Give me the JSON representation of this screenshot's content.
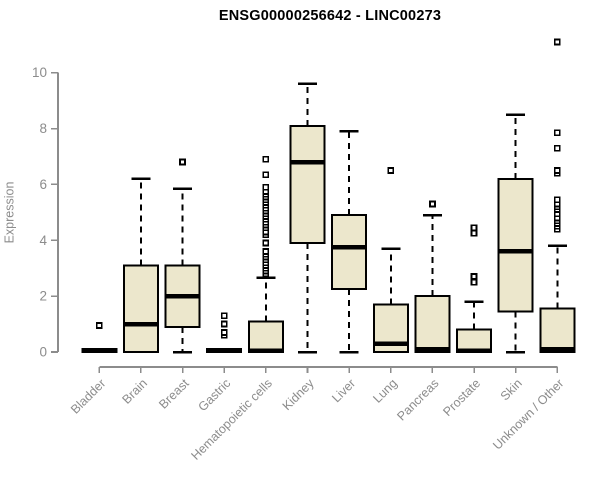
{
  "chart_data": {
    "type": "boxplot",
    "title": "ENSG00000256642 - LINC00273",
    "xlabel": "",
    "ylabel": "Expression",
    "ylim": [
      0,
      10
    ],
    "yticks": [
      0,
      2,
      4,
      6,
      8,
      10
    ],
    "grid": false,
    "legend": false,
    "categories": [
      "Bladder",
      "Brain",
      "Breast",
      "Gastric",
      "Hematopoietic cells",
      "Kidney",
      "Liver",
      "Lung",
      "Pancreas",
      "Prostate",
      "Skin",
      "Unknown / Other"
    ],
    "boxes": [
      {
        "category": "Bladder",
        "whisker_low": 0,
        "q1": 0,
        "median": 0.05,
        "q3": 0.1,
        "whisker_high": 0.1,
        "outliers": [
          0.95
        ]
      },
      {
        "category": "Brain",
        "whisker_low": 0,
        "q1": 0,
        "median": 1.0,
        "q3": 3.1,
        "whisker_high": 6.2,
        "outliers": []
      },
      {
        "category": "Breast",
        "whisker_low": 0,
        "q1": 0.9,
        "median": 2.0,
        "q3": 3.1,
        "whisker_high": 5.85,
        "outliers": [
          6.8
        ]
      },
      {
        "category": "Gastric",
        "whisker_low": 0,
        "q1": 0,
        "median": 0.05,
        "q3": 0.1,
        "whisker_high": 0.1,
        "outliers": [
          0.6,
          0.7,
          1.0,
          1.3
        ]
      },
      {
        "category": "Hematopoietic cells",
        "whisker_low": 0,
        "q1": 0,
        "median": 0.05,
        "q3": 1.1,
        "whisker_high": 2.65,
        "outliers": [
          2.8,
          2.9,
          3.0,
          3.1,
          3.2,
          3.3,
          3.4,
          3.5,
          3.6,
          3.9,
          4.2,
          4.3,
          4.45,
          4.55,
          4.65,
          4.75,
          4.85,
          4.95,
          5.05,
          5.15,
          5.25,
          5.35,
          5.45,
          5.55,
          5.65,
          5.75,
          5.9,
          6.35,
          6.9
        ]
      },
      {
        "category": "Kidney",
        "whisker_low": 0,
        "q1": 3.9,
        "median": 6.8,
        "q3": 8.1,
        "whisker_high": 9.6,
        "outliers": []
      },
      {
        "category": "Liver",
        "whisker_low": 0,
        "q1": 2.25,
        "median": 3.75,
        "q3": 4.9,
        "whisker_high": 7.9,
        "outliers": []
      },
      {
        "category": "Lung",
        "whisker_low": 0,
        "q1": 0,
        "median": 0.3,
        "q3": 1.7,
        "whisker_high": 3.7,
        "outliers": [
          6.5
        ]
      },
      {
        "category": "Pancreas",
        "whisker_low": 0,
        "q1": 0,
        "median": 0.1,
        "q3": 2.0,
        "whisker_high": 4.9,
        "outliers": [
          5.3
        ]
      },
      {
        "category": "Prostate",
        "whisker_low": 0,
        "q1": 0,
        "median": 0.05,
        "q3": 0.8,
        "whisker_high": 1.8,
        "outliers": [
          2.5,
          2.7,
          4.25,
          4.45
        ]
      },
      {
        "category": "Skin",
        "whisker_low": 0,
        "q1": 1.45,
        "median": 3.6,
        "q3": 6.2,
        "whisker_high": 8.5,
        "outliers": []
      },
      {
        "category": "Unknown / Other",
        "whisker_low": 0,
        "q1": 0,
        "median": 0.1,
        "q3": 1.55,
        "whisker_high": 3.8,
        "outliers": [
          4.4,
          4.5,
          4.6,
          4.7,
          4.8,
          4.95,
          5.1,
          5.2,
          5.3,
          5.45,
          6.4,
          6.5,
          7.3,
          7.85,
          11.1
        ]
      }
    ]
  },
  "colors": {
    "background": "#FFFFFF",
    "box_fill": "#ECE7CC",
    "box_stroke": "#000000",
    "median": "#000000",
    "whisker": "#000000",
    "outlier_stroke": "#000000",
    "outlier_fill": "#FFFFFF",
    "axis": "#8C8C8C",
    "tick_labels": "#8C8C8C",
    "title": "#000000"
  }
}
